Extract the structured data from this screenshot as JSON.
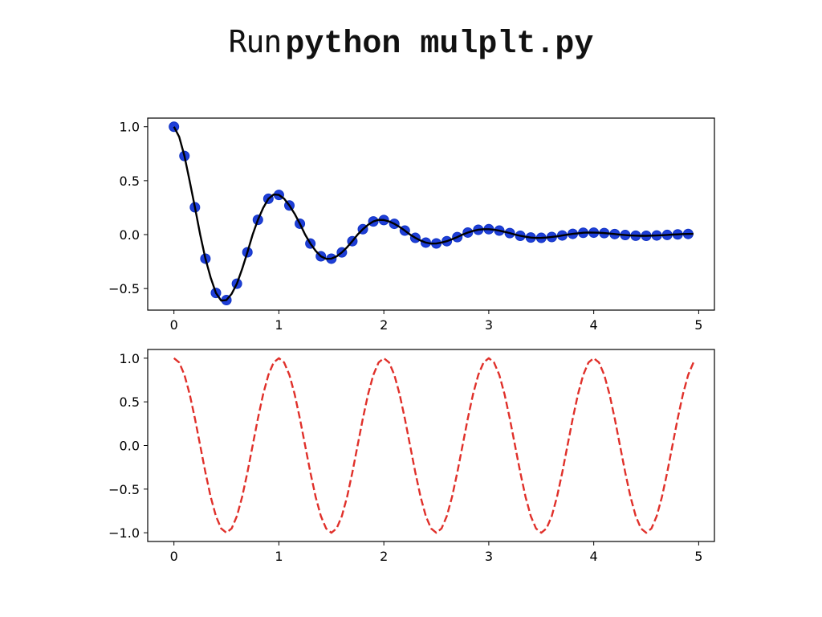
{
  "title": {
    "prefix": "Run",
    "command": "python mulplt.py"
  },
  "colors": {
    "damped_line": "#000000",
    "sample_points": "#1f3fd8",
    "sample_edge": "#1033c4",
    "cosine_line": "#e0302a",
    "axes": "#000000"
  },
  "chart_data": [
    {
      "type": "line",
      "title": "",
      "xlabel": "",
      "ylabel": "",
      "xlim": [
        -0.25,
        5.15
      ],
      "ylim": [
        -0.7,
        1.08
      ],
      "xticks": [
        0,
        1,
        2,
        3,
        4,
        5
      ],
      "xtick_labels": [
        "0",
        "1",
        "2",
        "3",
        "4",
        "5"
      ],
      "yticks": [
        -0.5,
        0.0,
        0.5,
        1.0
      ],
      "ytick_labels": [
        "−0.5",
        "0.0",
        "0.5",
        "1.0"
      ],
      "grid": false,
      "series": [
        {
          "style": "solid-line",
          "color": "#000000",
          "x": [
            0.0,
            0.05,
            0.1,
            0.15,
            0.2,
            0.25,
            0.3,
            0.35,
            0.4,
            0.45,
            0.5,
            0.55,
            0.6,
            0.65,
            0.7,
            0.75,
            0.8,
            0.85,
            0.9,
            0.95,
            1.0,
            1.05,
            1.1,
            1.15,
            1.2,
            1.25,
            1.3,
            1.35,
            1.4,
            1.45,
            1.5,
            1.55,
            1.6,
            1.65,
            1.7,
            1.75,
            1.8,
            1.85,
            1.9,
            1.95,
            2.0,
            2.05,
            2.1,
            2.15,
            2.2,
            2.25,
            2.3,
            2.35,
            2.4,
            2.45,
            2.5,
            2.55,
            2.6,
            2.65,
            2.7,
            2.75,
            2.8,
            2.85,
            2.9,
            2.95,
            3.0,
            3.05,
            3.1,
            3.15,
            3.2,
            3.25,
            3.3,
            3.35,
            3.4,
            3.45,
            3.5,
            3.55,
            3.6,
            3.65,
            3.7,
            3.75,
            3.8,
            3.85,
            3.9,
            3.95,
            4.0,
            4.05,
            4.1,
            4.15,
            4.2,
            4.25,
            4.3,
            4.35,
            4.4,
            4.45,
            4.5,
            4.55,
            4.6,
            4.65,
            4.7,
            4.75,
            4.8,
            4.85,
            4.9,
            4.95
          ],
          "y": [
            1.0,
            0.906,
            0.729,
            0.495,
            0.253,
            0.0,
            -0.223,
            -0.399,
            -0.541,
            -0.612,
            -0.607,
            -0.549,
            -0.455,
            -0.318,
            -0.164,
            0.0,
            0.137,
            0.247,
            0.332,
            0.372,
            0.368,
            0.333,
            0.27,
            0.193,
            0.101,
            0.0,
            -0.083,
            -0.15,
            -0.201,
            -0.225,
            -0.223,
            -0.202,
            -0.165,
            -0.117,
            -0.061,
            0.0,
            0.05,
            0.091,
            0.122,
            0.137,
            0.135,
            0.122,
            0.1,
            0.071,
            0.037,
            0.0,
            -0.03,
            -0.055,
            -0.074,
            -0.083,
            -0.082,
            -0.074,
            -0.061,
            -0.043,
            -0.023,
            0.0,
            0.019,
            0.034,
            0.045,
            0.05,
            0.05,
            0.045,
            0.037,
            0.026,
            0.014,
            0.0,
            -0.011,
            -0.02,
            -0.027,
            -0.031,
            -0.03,
            -0.027,
            -0.022,
            -0.016,
            -0.008,
            0.0,
            0.007,
            0.012,
            0.017,
            0.019,
            0.018,
            0.017,
            0.014,
            0.01,
            0.005,
            0.0,
            -0.004,
            -0.008,
            -0.01,
            -0.011,
            -0.011,
            -0.01,
            -0.008,
            -0.006,
            -0.003,
            0.0,
            0.002,
            0.005,
            0.006,
            0.007
          ]
        },
        {
          "style": "markers",
          "color": "#1f3fd8",
          "x": [
            0.0,
            0.1,
            0.2,
            0.3,
            0.4,
            0.5,
            0.6,
            0.7,
            0.8,
            0.9,
            1.0,
            1.1,
            1.2,
            1.3,
            1.4,
            1.5,
            1.6,
            1.7,
            1.8,
            1.9,
            2.0,
            2.1,
            2.2,
            2.3,
            2.4,
            2.5,
            2.6,
            2.7,
            2.8,
            2.9,
            3.0,
            3.1,
            3.2,
            3.3,
            3.4,
            3.5,
            3.6,
            3.7,
            3.8,
            3.9,
            4.0,
            4.1,
            4.2,
            4.3,
            4.4,
            4.5,
            4.6,
            4.7,
            4.8,
            4.9
          ],
          "y": [
            1.0,
            0.729,
            0.253,
            -0.223,
            -0.541,
            -0.607,
            -0.455,
            -0.164,
            0.137,
            0.332,
            0.368,
            0.27,
            0.101,
            -0.083,
            -0.201,
            -0.223,
            -0.165,
            -0.061,
            0.05,
            0.122,
            0.135,
            0.1,
            0.037,
            -0.03,
            -0.074,
            -0.082,
            -0.061,
            -0.023,
            0.019,
            0.045,
            0.05,
            0.037,
            0.014,
            -0.011,
            -0.027,
            -0.03,
            -0.022,
            -0.008,
            0.007,
            0.017,
            0.018,
            0.014,
            0.005,
            -0.004,
            -0.01,
            -0.011,
            -0.008,
            -0.003,
            0.002,
            0.006
          ]
        }
      ]
    },
    {
      "type": "line",
      "title": "",
      "xlabel": "",
      "ylabel": "",
      "xlim": [
        -0.25,
        5.15
      ],
      "ylim": [
        -1.1,
        1.1
      ],
      "xticks": [
        0,
        1,
        2,
        3,
        4,
        5
      ],
      "xtick_labels": [
        "0",
        "1",
        "2",
        "3",
        "4",
        "5"
      ],
      "yticks": [
        -1.0,
        -0.5,
        0.0,
        0.5,
        1.0
      ],
      "ytick_labels": [
        "−1.0",
        "−0.5",
        "0.0",
        "0.5",
        "1.0"
      ],
      "grid": false,
      "series": [
        {
          "style": "dashed-line",
          "color": "#e0302a",
          "x": [
            0.0,
            0.05,
            0.1,
            0.15,
            0.2,
            0.25,
            0.3,
            0.35,
            0.4,
            0.45,
            0.5,
            0.55,
            0.6,
            0.65,
            0.7,
            0.75,
            0.8,
            0.85,
            0.9,
            0.95,
            1.0,
            1.05,
            1.1,
            1.15,
            1.2,
            1.25,
            1.3,
            1.35,
            1.4,
            1.45,
            1.5,
            1.55,
            1.6,
            1.65,
            1.7,
            1.75,
            1.8,
            1.85,
            1.9,
            1.95,
            2.0,
            2.05,
            2.1,
            2.15,
            2.2,
            2.25,
            2.3,
            2.35,
            2.4,
            2.45,
            2.5,
            2.55,
            2.6,
            2.65,
            2.7,
            2.75,
            2.8,
            2.85,
            2.9,
            2.95,
            3.0,
            3.05,
            3.1,
            3.15,
            3.2,
            3.25,
            3.3,
            3.35,
            3.4,
            3.45,
            3.5,
            3.55,
            3.6,
            3.65,
            3.7,
            3.75,
            3.8,
            3.85,
            3.9,
            3.95,
            4.0,
            4.05,
            4.1,
            4.15,
            4.2,
            4.25,
            4.3,
            4.35,
            4.4,
            4.45,
            4.5,
            4.55,
            4.6,
            4.65,
            4.7,
            4.75,
            4.8,
            4.85,
            4.9,
            4.95
          ],
          "y": [
            1.0,
            0.951,
            0.809,
            0.588,
            0.309,
            0.0,
            -0.309,
            -0.588,
            -0.809,
            -0.951,
            -1.0,
            -0.951,
            -0.809,
            -0.588,
            -0.309,
            0.0,
            0.309,
            0.588,
            0.809,
            0.951,
            1.0,
            0.951,
            0.809,
            0.588,
            0.309,
            0.0,
            -0.309,
            -0.588,
            -0.809,
            -0.951,
            -1.0,
            -0.951,
            -0.809,
            -0.588,
            -0.309,
            0.0,
            0.309,
            0.588,
            0.809,
            0.951,
            1.0,
            0.951,
            0.809,
            0.588,
            0.309,
            0.0,
            -0.309,
            -0.588,
            -0.809,
            -0.951,
            -1.0,
            -0.951,
            -0.809,
            -0.588,
            -0.309,
            0.0,
            0.309,
            0.588,
            0.809,
            0.951,
            1.0,
            0.951,
            0.809,
            0.588,
            0.309,
            0.0,
            -0.309,
            -0.588,
            -0.809,
            -0.951,
            -1.0,
            -0.951,
            -0.809,
            -0.588,
            -0.309,
            0.0,
            0.309,
            0.588,
            0.809,
            0.951,
            1.0,
            0.951,
            0.809,
            0.588,
            0.309,
            0.0,
            -0.309,
            -0.588,
            -0.809,
            -0.951,
            -1.0,
            -0.951,
            -0.809,
            -0.588,
            -0.309,
            0.0,
            0.309,
            0.588,
            0.809,
            0.951
          ]
        }
      ]
    }
  ]
}
